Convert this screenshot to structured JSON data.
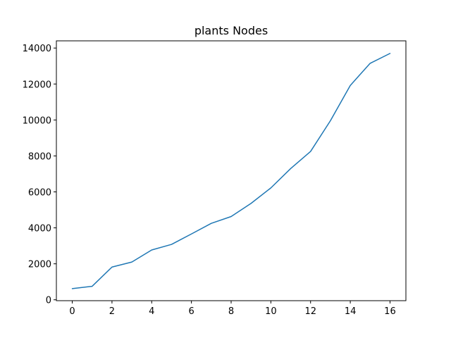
{
  "chart_data": {
    "type": "line",
    "title": "plants Nodes",
    "xlabel": "",
    "ylabel": "",
    "xlim": [
      -0.8,
      16.8
    ],
    "ylim": [
      -50,
      14400
    ],
    "xticks": [
      0,
      2,
      4,
      6,
      8,
      10,
      12,
      14,
      16
    ],
    "yticks": [
      0,
      2000,
      4000,
      6000,
      8000,
      10000,
      12000,
      14000
    ],
    "grid": false,
    "series": [
      {
        "color": "#1f77b4",
        "x": [
          0,
          1,
          2,
          3,
          4,
          5,
          6,
          7,
          8,
          9,
          10,
          11,
          12,
          13,
          14,
          15,
          16
        ],
        "values": [
          620,
          750,
          1820,
          2100,
          2770,
          3080,
          3660,
          4250,
          4630,
          5360,
          6220,
          7300,
          8250,
          9960,
          11920,
          13150,
          13700
        ]
      }
    ]
  }
}
